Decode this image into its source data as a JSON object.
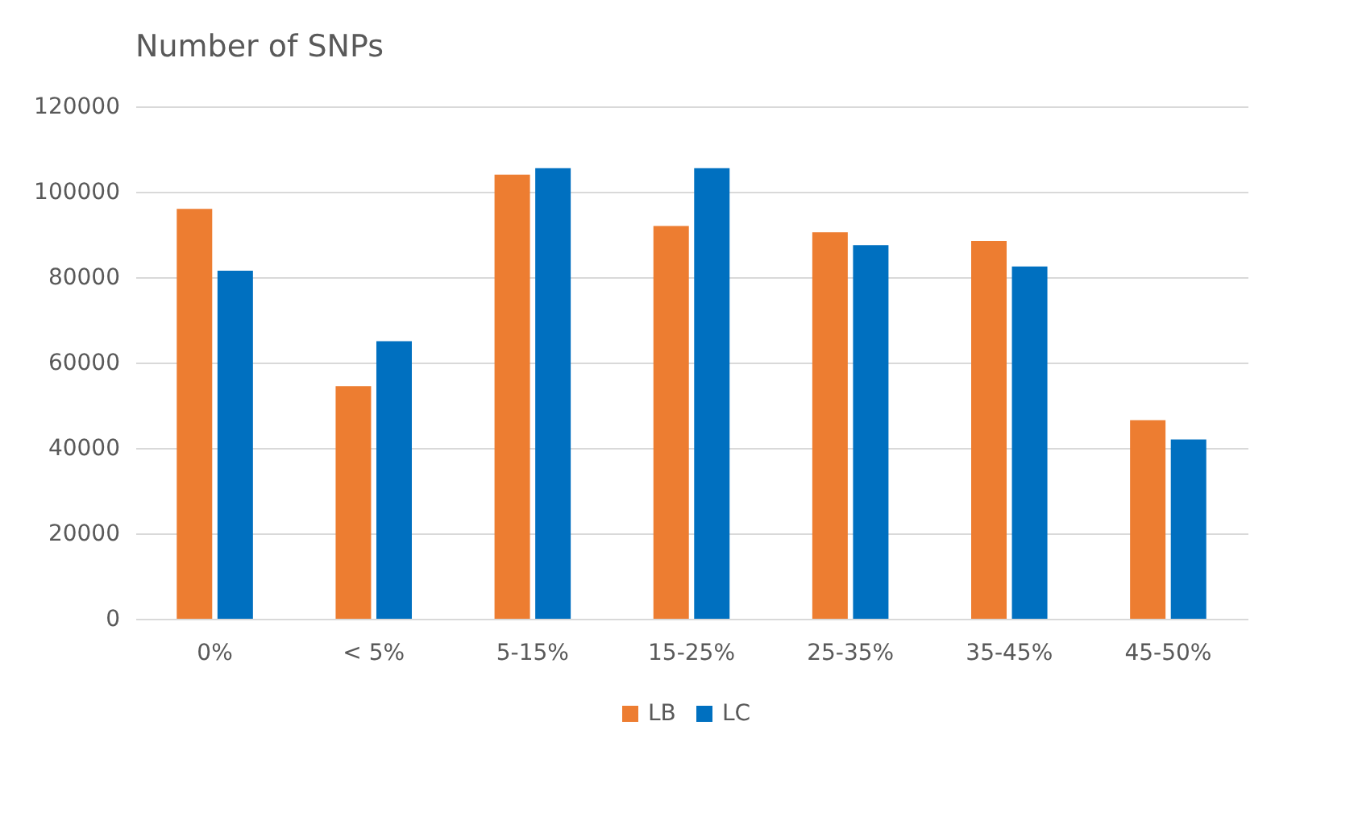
{
  "chart_data": {
    "type": "bar",
    "title": "Number of SNPs",
    "categories": [
      "0%",
      "< 5%",
      "5-15%",
      "15-25%",
      "25-35%",
      "35-45%",
      "45-50%"
    ],
    "series": [
      {
        "name": "LB",
        "color": "#ed7d31",
        "values": [
          96000,
          54500,
          104000,
          92000,
          90500,
          88500,
          46500
        ]
      },
      {
        "name": "LC",
        "color": "#0070c0",
        "values": [
          81500,
          65000,
          105500,
          105500,
          87500,
          82500,
          42000
        ]
      }
    ],
    "ylim": [
      0,
      120000
    ],
    "yticks": [
      0,
      20000,
      40000,
      60000,
      80000,
      100000,
      120000
    ],
    "grid": "y",
    "legend": "bottom"
  }
}
